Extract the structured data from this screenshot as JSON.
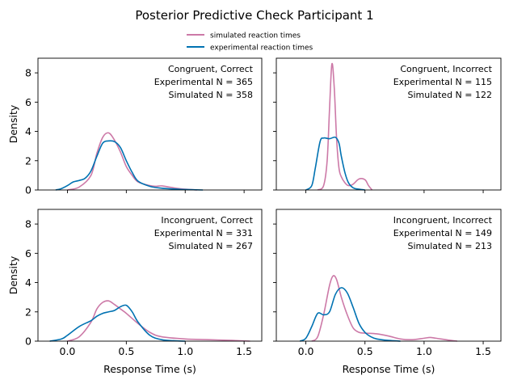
{
  "title": "Posterior Predictive Check Participant 1",
  "legend": {
    "placement": "top-center",
    "items": [
      {
        "label": "simulated reaction times",
        "color": "#cc79a7"
      },
      {
        "label": "experimental reaction times",
        "color": "#0072b2"
      }
    ]
  },
  "chart_data": [
    {
      "type": "line",
      "annotation": [
        "Congruent, Correct",
        "Experimental N = 365",
        "Simulated N = 358"
      ],
      "xlabel": "",
      "ylabel": "Density",
      "xlim": [
        -0.25,
        1.65
      ],
      "ylim": [
        0,
        9
      ],
      "xticks": [
        0.0,
        0.5,
        1.0,
        1.5
      ],
      "yticks": [
        0,
        2,
        4,
        6,
        8
      ],
      "series": [
        {
          "name": "simulated reaction times",
          "color": "#cc79a7",
          "x": [
            0.0,
            0.1,
            0.2,
            0.25,
            0.3,
            0.35,
            0.4,
            0.45,
            0.5,
            0.55,
            0.6,
            0.7,
            0.75,
            0.8,
            0.9,
            1.0,
            1.1
          ],
          "y": [
            0.0,
            0.2,
            1.0,
            2.5,
            3.6,
            3.9,
            3.4,
            2.6,
            1.6,
            1.0,
            0.55,
            0.3,
            0.25,
            0.28,
            0.15,
            0.05,
            0.0
          ]
        },
        {
          "name": "experimental reaction times",
          "color": "#0072b2",
          "x": [
            -0.1,
            -0.05,
            0.0,
            0.05,
            0.1,
            0.15,
            0.2,
            0.25,
            0.3,
            0.35,
            0.4,
            0.45,
            0.5,
            0.55,
            0.6,
            0.7,
            0.8,
            0.9,
            1.0,
            1.15
          ],
          "y": [
            0.0,
            0.1,
            0.3,
            0.55,
            0.65,
            0.8,
            1.3,
            2.3,
            3.2,
            3.35,
            3.3,
            2.9,
            2.0,
            1.2,
            0.6,
            0.25,
            0.12,
            0.07,
            0.03,
            0.0
          ]
        }
      ]
    },
    {
      "type": "line",
      "annotation": [
        "Congruent, Incorrect",
        "Experimental N = 115",
        "Simulated N = 122"
      ],
      "xlabel": "",
      "ylabel": "",
      "xlim": [
        -0.25,
        1.65
      ],
      "ylim": [
        0,
        9
      ],
      "xticks": [
        0.0,
        0.5,
        1.0,
        1.5
      ],
      "yticks": [
        0,
        2,
        4,
        6,
        8
      ],
      "series": [
        {
          "name": "simulated reaction times",
          "color": "#cc79a7",
          "x": [
            0.1,
            0.15,
            0.18,
            0.2,
            0.22,
            0.24,
            0.26,
            0.28,
            0.3,
            0.33,
            0.36,
            0.4,
            0.45,
            0.5,
            0.53,
            0.56
          ],
          "y": [
            0.0,
            0.3,
            2.0,
            5.5,
            8.6,
            7.0,
            3.5,
            1.5,
            0.9,
            0.5,
            0.3,
            0.4,
            0.75,
            0.7,
            0.3,
            0.0
          ]
        },
        {
          "name": "experimental reaction times",
          "color": "#0072b2",
          "x": [
            0.0,
            0.05,
            0.08,
            0.12,
            0.15,
            0.2,
            0.25,
            0.28,
            0.3,
            0.33,
            0.36,
            0.4,
            0.45,
            0.5
          ],
          "y": [
            0.0,
            0.3,
            1.5,
            3.3,
            3.55,
            3.5,
            3.6,
            3.2,
            2.3,
            1.2,
            0.5,
            0.15,
            0.05,
            0.0
          ]
        }
      ]
    },
    {
      "type": "line",
      "annotation": [
        "Incongruent, Correct",
        "Experimental N = 331",
        "Simulated N = 267"
      ],
      "xlabel": "Response Time (s)",
      "ylabel": "Density",
      "xlim": [
        -0.25,
        1.65
      ],
      "ylim": [
        0,
        9
      ],
      "xticks": [
        0.0,
        0.5,
        1.0,
        1.5
      ],
      "yticks": [
        0,
        2,
        4,
        6,
        8
      ],
      "series": [
        {
          "name": "simulated reaction times",
          "color": "#cc79a7",
          "x": [
            0.0,
            0.1,
            0.2,
            0.25,
            0.3,
            0.35,
            0.4,
            0.45,
            0.5,
            0.6,
            0.7,
            0.8,
            1.0,
            1.2,
            1.4,
            1.55
          ],
          "y": [
            0.0,
            0.3,
            1.3,
            2.2,
            2.65,
            2.75,
            2.5,
            2.2,
            1.9,
            1.2,
            0.6,
            0.3,
            0.15,
            0.1,
            0.05,
            0.0
          ]
        },
        {
          "name": "experimental reaction times",
          "color": "#0072b2",
          "x": [
            -0.15,
            -0.05,
            0.0,
            0.1,
            0.2,
            0.25,
            0.3,
            0.35,
            0.4,
            0.45,
            0.5,
            0.55,
            0.6,
            0.7,
            0.8,
            0.9,
            1.0
          ],
          "y": [
            0.0,
            0.15,
            0.4,
            1.0,
            1.4,
            1.7,
            1.9,
            2.0,
            2.1,
            2.35,
            2.45,
            2.0,
            1.3,
            0.4,
            0.1,
            0.03,
            0.0
          ]
        }
      ]
    },
    {
      "type": "line",
      "annotation": [
        "Incongruent, Incorrect",
        "Experimental N = 149",
        "Simulated N = 213"
      ],
      "xlabel": "Response Time (s)",
      "ylabel": "",
      "xlim": [
        -0.25,
        1.65
      ],
      "ylim": [
        0,
        9
      ],
      "xticks": [
        0.0,
        0.5,
        1.0,
        1.5
      ],
      "yticks": [
        0,
        2,
        4,
        6,
        8
      ],
      "series": [
        {
          "name": "simulated reaction times",
          "color": "#cc79a7",
          "x": [
            0.05,
            0.1,
            0.15,
            0.2,
            0.23,
            0.26,
            0.3,
            0.35,
            0.4,
            0.45,
            0.5,
            0.6,
            0.7,
            0.8,
            0.9,
            1.0,
            1.05,
            1.1,
            1.2,
            1.28
          ],
          "y": [
            0.0,
            0.3,
            1.8,
            3.8,
            4.45,
            4.2,
            3.0,
            1.8,
            0.9,
            0.6,
            0.55,
            0.5,
            0.35,
            0.15,
            0.1,
            0.2,
            0.25,
            0.2,
            0.08,
            0.0
          ]
        },
        {
          "name": "experimental reaction times",
          "color": "#0072b2",
          "x": [
            -0.05,
            0.0,
            0.05,
            0.1,
            0.15,
            0.2,
            0.25,
            0.3,
            0.35,
            0.4,
            0.45,
            0.5,
            0.55,
            0.6,
            0.7,
            0.8
          ],
          "y": [
            0.0,
            0.2,
            1.0,
            1.9,
            1.8,
            2.0,
            3.2,
            3.65,
            3.3,
            2.3,
            1.2,
            0.6,
            0.3,
            0.15,
            0.05,
            0.0
          ]
        }
      ]
    }
  ]
}
